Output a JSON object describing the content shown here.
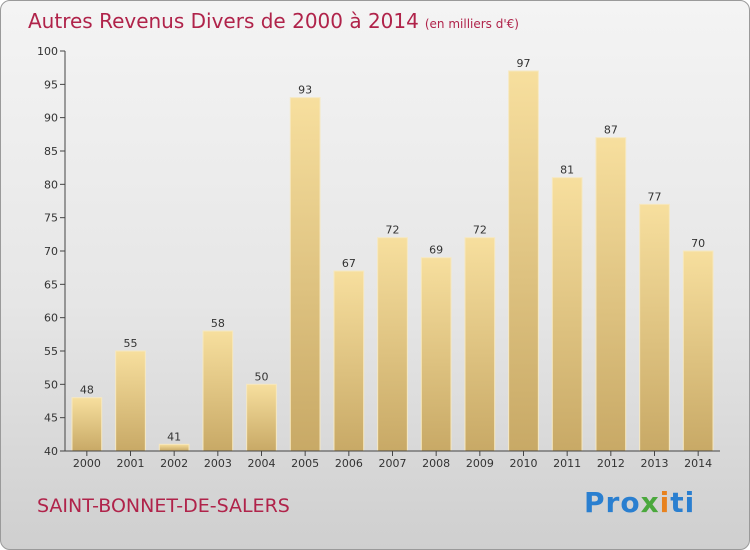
{
  "title": "Autres Revenus Divers de 2000 à 2014",
  "subtitle": "(en milliers d'€)",
  "region": "SAINT-BONNET-DE-SALERS",
  "logo": {
    "p1": "Pro",
    "p2": "x",
    "p3": "i",
    "p4": "ti"
  },
  "colors": {
    "bar_top": "#f7df9e",
    "bar_bottom": "#c8a966",
    "title": "#b0234a"
  },
  "chart_data": {
    "type": "bar",
    "categories": [
      "2000",
      "2001",
      "2002",
      "2003",
      "2004",
      "2005",
      "2006",
      "2007",
      "2008",
      "2009",
      "2010",
      "2011",
      "2012",
      "2013",
      "2014"
    ],
    "values": [
      48,
      55,
      41,
      58,
      50,
      93,
      67,
      72,
      69,
      72,
      97,
      81,
      87,
      77,
      70
    ],
    "ylim": [
      40,
      100
    ],
    "yticks": [
      40,
      45,
      50,
      55,
      60,
      65,
      70,
      75,
      80,
      85,
      90,
      95,
      100
    ],
    "grid": false,
    "title": "Autres Revenus Divers de 2000 à 2014",
    "xlabel": "",
    "ylabel": ""
  }
}
